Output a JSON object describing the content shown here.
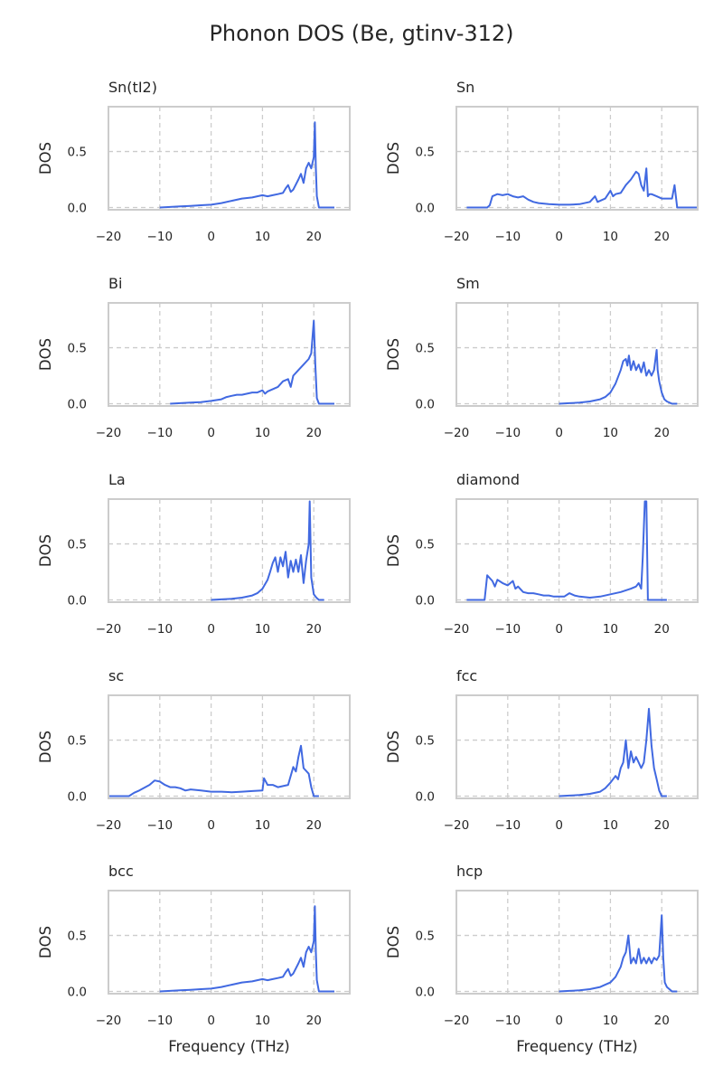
{
  "title": "Phonon DOS (Be, gtinv-312)",
  "chart_data": {
    "type": "line",
    "layout": "grid-5x2",
    "shared_y": true,
    "grid": true,
    "line_color": "#4169e1",
    "xlabel": "Frequency (THz)",
    "ylabel": "DOS",
    "xlim": [
      -20,
      27
    ],
    "ylim": [
      -0.02,
      0.9
    ],
    "xticks": [
      -20,
      -10,
      0,
      10,
      20
    ],
    "xtick_labels": [
      "−20",
      "−10",
      "0",
      "10",
      "20"
    ],
    "yticks": [
      0.0,
      0.5
    ],
    "ytick_labels": [
      "0.0",
      "0.5"
    ],
    "panels": [
      {
        "title": "Sn(tI2)",
        "x": [
          -10,
          -8,
          -6,
          -4,
          -2,
          0,
          2,
          4,
          6,
          8,
          9,
          10,
          11,
          12,
          13,
          14,
          14.5,
          15,
          15.5,
          16,
          17,
          17.5,
          18,
          18.5,
          19,
          19.5,
          20,
          20.2,
          20.4,
          20.6,
          21,
          22,
          24
        ],
        "y": [
          0,
          0.005,
          0.01,
          0.015,
          0.02,
          0.025,
          0.04,
          0.06,
          0.08,
          0.09,
          0.1,
          0.11,
          0.1,
          0.11,
          0.12,
          0.13,
          0.17,
          0.2,
          0.14,
          0.16,
          0.25,
          0.3,
          0.22,
          0.35,
          0.4,
          0.35,
          0.45,
          0.76,
          0.35,
          0.1,
          0,
          0,
          0
        ]
      },
      {
        "title": "Sn",
        "x": [
          -18,
          -14,
          -13.5,
          -13,
          -12,
          -11,
          -10,
          -9,
          -8,
          -7,
          -6,
          -5,
          -4,
          -2,
          0,
          2,
          4,
          6,
          7,
          7.5,
          8,
          9,
          10,
          10.5,
          11,
          12,
          13,
          14,
          15,
          15.5,
          16,
          16.5,
          17,
          17.3,
          17.6,
          18,
          19,
          20,
          21,
          22,
          22.5,
          23,
          24,
          27
        ],
        "y": [
          0,
          0,
          0.02,
          0.1,
          0.12,
          0.11,
          0.12,
          0.1,
          0.09,
          0.1,
          0.07,
          0.05,
          0.04,
          0.03,
          0.025,
          0.025,
          0.03,
          0.05,
          0.1,
          0.05,
          0.06,
          0.08,
          0.15,
          0.1,
          0.12,
          0.13,
          0.2,
          0.25,
          0.32,
          0.3,
          0.2,
          0.15,
          0.35,
          0.1,
          0.12,
          0.12,
          0.1,
          0.08,
          0.08,
          0.08,
          0.2,
          0,
          0,
          0
        ]
      },
      {
        "title": "Bi",
        "x": [
          -8,
          -6,
          -4,
          -2,
          0,
          2,
          3,
          4,
          5,
          6,
          7,
          8,
          9,
          10,
          10.5,
          11,
          12,
          13,
          14,
          15,
          15.5,
          16,
          17,
          18,
          19,
          19.5,
          20,
          20.3,
          20.6,
          21,
          22,
          24
        ],
        "y": [
          0,
          0.005,
          0.01,
          0.015,
          0.025,
          0.04,
          0.06,
          0.07,
          0.08,
          0.08,
          0.09,
          0.1,
          0.1,
          0.12,
          0.09,
          0.11,
          0.13,
          0.15,
          0.2,
          0.22,
          0.15,
          0.25,
          0.3,
          0.35,
          0.4,
          0.45,
          0.74,
          0.35,
          0.05,
          0,
          0,
          0
        ]
      },
      {
        "title": "Sm",
        "x": [
          0,
          2,
          4,
          6,
          8,
          9,
          10,
          11,
          12,
          12.5,
          13,
          13.3,
          13.6,
          14,
          14.5,
          15,
          15.5,
          16,
          16.5,
          17,
          17.5,
          18,
          18.5,
          19,
          19.2,
          19.5,
          20,
          20.5,
          21,
          22,
          23
        ],
        "y": [
          0,
          0.005,
          0.01,
          0.02,
          0.04,
          0.06,
          0.1,
          0.18,
          0.3,
          0.38,
          0.4,
          0.34,
          0.43,
          0.3,
          0.38,
          0.3,
          0.35,
          0.28,
          0.37,
          0.25,
          0.3,
          0.25,
          0.3,
          0.48,
          0.3,
          0.2,
          0.1,
          0.04,
          0.02,
          0,
          0
        ]
      },
      {
        "title": "La",
        "x": [
          0,
          2,
          4,
          6,
          8,
          9,
          10,
          11,
          11.5,
          12,
          12.5,
          13,
          13.5,
          14,
          14.5,
          15,
          15.5,
          16,
          16.5,
          17,
          17.5,
          18,
          18.5,
          19,
          19.2,
          19.5,
          20,
          20.5,
          21,
          22
        ],
        "y": [
          0,
          0.005,
          0.01,
          0.02,
          0.04,
          0.06,
          0.1,
          0.18,
          0.25,
          0.33,
          0.38,
          0.25,
          0.38,
          0.3,
          0.43,
          0.2,
          0.35,
          0.25,
          0.36,
          0.25,
          0.4,
          0.15,
          0.35,
          0.5,
          0.88,
          0.2,
          0.05,
          0.02,
          0,
          0
        ]
      },
      {
        "title": "diamond",
        "x": [
          -18,
          -14.5,
          -14,
          -13,
          -12.5,
          -12,
          -11,
          -10,
          -9,
          -8.5,
          -8,
          -7,
          -6,
          -5,
          -4,
          -3,
          -2,
          -1,
          0,
          1,
          2,
          3,
          4,
          6,
          8,
          10,
          12,
          14,
          15,
          15.5,
          16,
          16.3,
          16.7,
          17,
          17.3,
          18,
          21
        ],
        "y": [
          0,
          0,
          0.22,
          0.17,
          0.12,
          0.18,
          0.15,
          0.13,
          0.17,
          0.1,
          0.12,
          0.07,
          0.06,
          0.06,
          0.05,
          0.04,
          0.04,
          0.03,
          0.03,
          0.03,
          0.06,
          0.04,
          0.03,
          0.02,
          0.03,
          0.05,
          0.07,
          0.1,
          0.12,
          0.15,
          0.1,
          0.38,
          0.88,
          0.88,
          0,
          0,
          0
        ]
      },
      {
        "title": "sc",
        "x": [
          -20,
          -16,
          -15,
          -14,
          -12,
          -11,
          -10,
          -9,
          -8,
          -7,
          -6,
          -5,
          -4,
          -2,
          0,
          2,
          4,
          6,
          8,
          10,
          10.3,
          11,
          12,
          13,
          15,
          16,
          16.5,
          17,
          17.5,
          18,
          19,
          19.5,
          20,
          21
        ],
        "y": [
          0,
          0,
          0.03,
          0.05,
          0.1,
          0.14,
          0.13,
          0.1,
          0.08,
          0.08,
          0.07,
          0.05,
          0.06,
          0.05,
          0.04,
          0.04,
          0.035,
          0.04,
          0.045,
          0.05,
          0.16,
          0.1,
          0.1,
          0.08,
          0.1,
          0.26,
          0.22,
          0.35,
          0.45,
          0.25,
          0.2,
          0.08,
          0,
          0
        ]
      },
      {
        "title": "fcc",
        "x": [
          0,
          2,
          4,
          6,
          8,
          9,
          10,
          11,
          11.5,
          12,
          12.5,
          13,
          13.5,
          14,
          14.5,
          15,
          15.5,
          16,
          16.5,
          17,
          17.5,
          18,
          18.5,
          19,
          19.5,
          20,
          21
        ],
        "y": [
          0,
          0.005,
          0.01,
          0.02,
          0.04,
          0.07,
          0.12,
          0.18,
          0.15,
          0.25,
          0.3,
          0.5,
          0.25,
          0.4,
          0.3,
          0.35,
          0.3,
          0.25,
          0.3,
          0.5,
          0.78,
          0.45,
          0.25,
          0.15,
          0.05,
          0,
          0
        ]
      },
      {
        "title": "bcc",
        "x": [
          -10,
          -8,
          -6,
          -4,
          -2,
          0,
          2,
          4,
          6,
          8,
          9,
          10,
          11,
          12,
          13,
          14,
          14.5,
          15,
          15.5,
          16,
          17,
          17.5,
          18,
          18.5,
          19,
          19.5,
          20,
          20.2,
          20.4,
          20.6,
          21,
          22,
          24
        ],
        "y": [
          0,
          0.005,
          0.01,
          0.015,
          0.02,
          0.025,
          0.04,
          0.06,
          0.08,
          0.09,
          0.1,
          0.11,
          0.1,
          0.11,
          0.12,
          0.13,
          0.17,
          0.2,
          0.14,
          0.16,
          0.25,
          0.3,
          0.22,
          0.35,
          0.4,
          0.35,
          0.45,
          0.76,
          0.35,
          0.1,
          0,
          0,
          0
        ]
      },
      {
        "title": "hcp",
        "x": [
          0,
          2,
          4,
          6,
          8,
          9,
          10,
          11,
          12,
          12.5,
          13,
          13.5,
          14,
          14.5,
          15,
          15.5,
          16,
          16.5,
          17,
          17.5,
          18,
          18.5,
          19,
          19.5,
          20,
          20.3,
          20.6,
          21,
          22,
          23
        ],
        "y": [
          0,
          0.005,
          0.01,
          0.02,
          0.04,
          0.06,
          0.08,
          0.13,
          0.22,
          0.3,
          0.35,
          0.5,
          0.25,
          0.3,
          0.25,
          0.38,
          0.25,
          0.3,
          0.25,
          0.3,
          0.25,
          0.3,
          0.28,
          0.32,
          0.68,
          0.3,
          0.08,
          0.04,
          0,
          0
        ]
      }
    ]
  }
}
